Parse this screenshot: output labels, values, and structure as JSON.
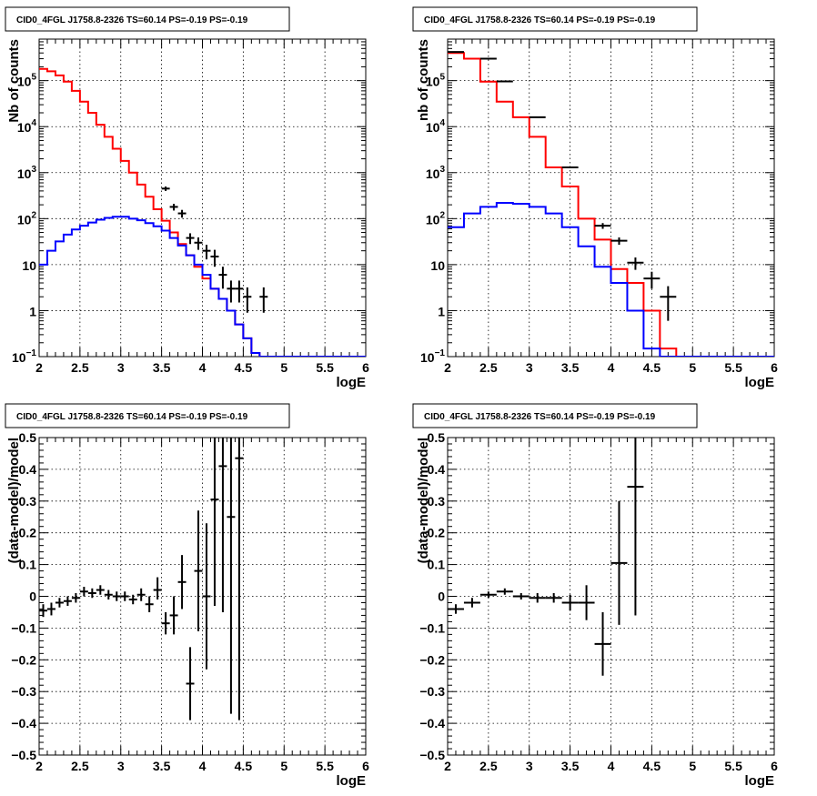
{
  "chart_data": [
    {
      "type": "line",
      "title": "CID0_4FGL J1758.8-2326 TS=60.14 PS=-0.19 PS=-0.19",
      "xlabel": "logE",
      "ylabel": "Nb of counts",
      "xlim": [
        2,
        6
      ],
      "ylim": [
        0.1,
        800000
      ],
      "yscale": "log",
      "grid": true,
      "xticks": [
        "2",
        "2.5",
        "3",
        "3.5",
        "4",
        "4.5",
        "5",
        "5.5",
        "6"
      ],
      "yticks": [
        {
          "v": 0.1,
          "mant": "10",
          "exp": "−1"
        },
        {
          "v": 1,
          "mant": "1",
          "exp": ""
        },
        {
          "v": 10,
          "mant": "10",
          "exp": ""
        },
        {
          "v": 100,
          "mant": "10",
          "exp": "2"
        },
        {
          "v": 1000,
          "mant": "10",
          "exp": "3"
        },
        {
          "v": 10000,
          "mant": "10",
          "exp": "4"
        },
        {
          "v": 100000,
          "mant": "10",
          "exp": "5"
        }
      ],
      "series": [
        {
          "kind": "hist",
          "color": "#ff0000",
          "edges_start": 2,
          "bin_width": 0.1,
          "values": [
            180000,
            160000,
            130000,
            95000,
            60000,
            35000,
            20000,
            11000,
            6000,
            3300,
            1800,
            1000,
            550,
            300,
            160,
            90,
            50,
            28,
            16,
            9,
            5,
            3,
            1.8,
            1,
            0.5,
            0.25,
            0.12,
            0.08,
            0.08,
            0.08,
            0.08,
            0.08,
            0.08,
            0.08,
            0.08,
            0.08,
            0.08,
            0.08,
            0.08,
            0.08
          ]
        },
        {
          "kind": "hist",
          "color": "#0000ff",
          "edges_start": 2,
          "bin_width": 0.1,
          "values": [
            10,
            20,
            32,
            45,
            58,
            70,
            82,
            95,
            104,
            110,
            110,
            100,
            92,
            80,
            68,
            55,
            38,
            26,
            16,
            10,
            6,
            3,
            1.8,
            1,
            0.5,
            0.25,
            0.12,
            0.08,
            0.08,
            0.08,
            0.08,
            0.08,
            0.08,
            0.08,
            0.08,
            0.08,
            0.08,
            0.08,
            0.08,
            0.08
          ]
        },
        {
          "kind": "points",
          "color": "#000000",
          "points": [
            {
              "x": 3.55,
              "y": 450,
              "lo": 400,
              "hi": 500,
              "xw": 0.05
            },
            {
              "x": 3.65,
              "y": 180,
              "lo": 150,
              "hi": 210,
              "xw": 0.05
            },
            {
              "x": 3.75,
              "y": 130,
              "lo": 105,
              "hi": 155,
              "xw": 0.05
            },
            {
              "x": 3.85,
              "y": 38,
              "lo": 28,
              "hi": 48,
              "xw": 0.05
            },
            {
              "x": 3.95,
              "y": 30,
              "lo": 21,
              "hi": 39,
              "xw": 0.05
            },
            {
              "x": 4.05,
              "y": 20,
              "lo": 13,
              "hi": 27,
              "xw": 0.05
            },
            {
              "x": 4.15,
              "y": 15,
              "lo": 9,
              "hi": 21,
              "xw": 0.05
            },
            {
              "x": 4.25,
              "y": 6,
              "lo": 3,
              "hi": 9,
              "xw": 0.05
            },
            {
              "x": 4.35,
              "y": 3,
              "lo": 1.5,
              "hi": 4.5,
              "xw": 0.05
            },
            {
              "x": 4.45,
              "y": 3,
              "lo": 1.5,
              "hi": 4.5,
              "xw": 0.05
            },
            {
              "x": 4.55,
              "y": 2,
              "lo": 0.9,
              "hi": 3.2,
              "xw": 0.05
            },
            {
              "x": 4.75,
              "y": 2,
              "lo": 0.9,
              "hi": 3.2,
              "xw": 0.05
            }
          ]
        }
      ]
    },
    {
      "type": "line",
      "title": "CID0_4FGL J1758.8-2326 TS=60.14 PS=-0.19 PS=-0.19",
      "xlabel": "logE",
      "ylabel": "nb of counts",
      "xlim": [
        2,
        6
      ],
      "ylim": [
        0.1,
        800000
      ],
      "yscale": "log",
      "grid": true,
      "xticks": [
        "2",
        "2.5",
        "3",
        "3.5",
        "4",
        "4.5",
        "5",
        "5.5",
        "6"
      ],
      "yticks": [
        {
          "v": 0.1,
          "mant": "10",
          "exp": "−1"
        },
        {
          "v": 1,
          "mant": "1",
          "exp": ""
        },
        {
          "v": 10,
          "mant": "10",
          "exp": ""
        },
        {
          "v": 100,
          "mant": "10",
          "exp": "2"
        },
        {
          "v": 1000,
          "mant": "10",
          "exp": "3"
        },
        {
          "v": 10000,
          "mant": "10",
          "exp": "4"
        },
        {
          "v": 100000,
          "mant": "10",
          "exp": "5"
        }
      ],
      "series": [
        {
          "kind": "hist",
          "color": "#ff0000",
          "edges_start": 2,
          "bin_width": 0.2,
          "values": [
            400000,
            300000,
            95000,
            35000,
            16000,
            6000,
            1300,
            500,
            100,
            35,
            8,
            4,
            1,
            0.15,
            0.08,
            0.08,
            0.08,
            0.08,
            0.08,
            0.08
          ]
        },
        {
          "kind": "hist",
          "color": "#0000ff",
          "edges_start": 2,
          "bin_width": 0.2,
          "values": [
            65,
            130,
            180,
            220,
            210,
            180,
            130,
            65,
            25,
            9,
            4,
            1,
            0.15,
            0.08,
            0.08,
            0.08,
            0.08,
            0.08,
            0.08,
            0.08
          ]
        },
        {
          "kind": "points",
          "color": "#000000",
          "points": [
            {
              "x": 2.1,
              "y": 420000,
              "lo": 410000,
              "hi": 430000,
              "xw": 0.1
            },
            {
              "x": 2.5,
              "y": 300000,
              "lo": 290000,
              "hi": 310000,
              "xw": 0.1
            },
            {
              "x": 2.7,
              "y": 96000,
              "lo": 92000,
              "hi": 100000,
              "xw": 0.1
            },
            {
              "x": 3.1,
              "y": 16000,
              "lo": 15500,
              "hi": 16500,
              "xw": 0.1
            },
            {
              "x": 3.5,
              "y": 1300,
              "lo": 1250,
              "hi": 1350,
              "xw": 0.1
            },
            {
              "x": 3.9,
              "y": 70,
              "lo": 60,
              "hi": 80,
              "xw": 0.1
            },
            {
              "x": 4.1,
              "y": 33,
              "lo": 27,
              "hi": 39,
              "xw": 0.1
            },
            {
              "x": 4.3,
              "y": 11,
              "lo": 7.7,
              "hi": 14.3,
              "xw": 0.1
            },
            {
              "x": 4.5,
              "y": 5,
              "lo": 3,
              "hi": 7,
              "xw": 0.1
            },
            {
              "x": 4.7,
              "y": 2,
              "lo": 0.6,
              "hi": 3.4,
              "xw": 0.1
            }
          ]
        }
      ]
    },
    {
      "type": "scatter",
      "title": "CID0_4FGL J1758.8-2326 TS=60.14 PS=-0.19 PS=-0.19",
      "xlabel": "logE",
      "ylabel": "(data-model)/model",
      "xlim": [
        2,
        6
      ],
      "ylim": [
        -0.5,
        0.5
      ],
      "yscale": "linear",
      "grid": true,
      "xticks": [
        "2",
        "2.5",
        "3",
        "3.5",
        "4",
        "4.5",
        "5",
        "5.5",
        "6"
      ],
      "yticks": [
        {
          "v": -0.5,
          "label": "−0.5"
        },
        {
          "v": -0.4,
          "label": "−0.4"
        },
        {
          "v": -0.3,
          "label": "−0.3"
        },
        {
          "v": -0.2,
          "label": "−0.2"
        },
        {
          "v": -0.1,
          "label": "−0.1"
        },
        {
          "v": 0,
          "label": "0"
        },
        {
          "v": 0.1,
          "label": "0.1"
        },
        {
          "v": 0.2,
          "label": "0.2"
        },
        {
          "v": 0.3,
          "label": "0.3"
        },
        {
          "v": 0.4,
          "label": "0.4"
        },
        {
          "v": 0.5,
          "label": "0.5"
        }
      ],
      "series": [
        {
          "kind": "points",
          "color": "#000000",
          "points": [
            {
              "x": 2.05,
              "y": -0.045,
              "lo": -0.065,
              "hi": -0.025,
              "xw": 0.05
            },
            {
              "x": 2.15,
              "y": -0.04,
              "lo": -0.06,
              "hi": -0.02,
              "xw": 0.05
            },
            {
              "x": 2.25,
              "y": -0.02,
              "lo": -0.035,
              "hi": -0.005,
              "xw": 0.05
            },
            {
              "x": 2.35,
              "y": -0.015,
              "lo": -0.03,
              "hi": 0.0,
              "xw": 0.05
            },
            {
              "x": 2.45,
              "y": -0.005,
              "lo": -0.02,
              "hi": 0.01,
              "xw": 0.05
            },
            {
              "x": 2.55,
              "y": 0.015,
              "lo": 0.0,
              "hi": 0.03,
              "xw": 0.05
            },
            {
              "x": 2.65,
              "y": 0.01,
              "lo": -0.005,
              "hi": 0.025,
              "xw": 0.05
            },
            {
              "x": 2.75,
              "y": 0.02,
              "lo": 0.005,
              "hi": 0.035,
              "xw": 0.05
            },
            {
              "x": 2.85,
              "y": 0.005,
              "lo": -0.01,
              "hi": 0.02,
              "xw": 0.05
            },
            {
              "x": 2.95,
              "y": 0.0,
              "lo": -0.015,
              "hi": 0.015,
              "xw": 0.05
            },
            {
              "x": 3.05,
              "y": 0.0,
              "lo": -0.015,
              "hi": 0.015,
              "xw": 0.05
            },
            {
              "x": 3.15,
              "y": -0.01,
              "lo": -0.025,
              "hi": 0.005,
              "xw": 0.05
            },
            {
              "x": 3.25,
              "y": 0.005,
              "lo": -0.015,
              "hi": 0.025,
              "xw": 0.05
            },
            {
              "x": 3.35,
              "y": -0.025,
              "lo": -0.05,
              "hi": 0.0,
              "xw": 0.05
            },
            {
              "x": 3.45,
              "y": 0.02,
              "lo": -0.01,
              "hi": 0.06,
              "xw": 0.05
            },
            {
              "x": 3.55,
              "y": -0.085,
              "lo": -0.12,
              "hi": -0.05,
              "xw": 0.05
            },
            {
              "x": 3.65,
              "y": -0.06,
              "lo": -0.12,
              "hi": 0.0,
              "xw": 0.05
            },
            {
              "x": 3.75,
              "y": 0.045,
              "lo": -0.04,
              "hi": 0.13,
              "xw": 0.05
            },
            {
              "x": 3.85,
              "y": -0.275,
              "lo": -0.39,
              "hi": -0.16,
              "xw": 0.05
            },
            {
              "x": 3.95,
              "y": 0.08,
              "lo": -0.11,
              "hi": 0.27,
              "xw": 0.05
            },
            {
              "x": 4.05,
              "y": 0.0,
              "lo": -0.23,
              "hi": 0.23,
              "xw": 0.05
            },
            {
              "x": 4.15,
              "y": 0.305,
              "lo": -0.03,
              "hi": 0.5,
              "xw": 0.05
            },
            {
              "x": 4.25,
              "y": 0.41,
              "lo": -0.05,
              "hi": 0.5,
              "xw": 0.05
            },
            {
              "x": 4.35,
              "y": 0.25,
              "lo": -0.37,
              "hi": 0.5,
              "xw": 0.05
            },
            {
              "x": 4.45,
              "y": 0.435,
              "lo": -0.39,
              "hi": 0.5,
              "xw": 0.05
            }
          ]
        }
      ]
    },
    {
      "type": "scatter",
      "title": "CID0_4FGL J1758.8-2326 TS=60.14 PS=-0.19 PS=-0.19",
      "xlabel": "logE",
      "ylabel": "(data-model)/model",
      "xlim": [
        2,
        6
      ],
      "ylim": [
        -0.5,
        0.5
      ],
      "yscale": "linear",
      "grid": true,
      "xticks": [
        "2",
        "2.5",
        "3",
        "3.5",
        "4",
        "4.5",
        "5",
        "5.5",
        "6"
      ],
      "yticks": [
        {
          "v": -0.5,
          "label": "−0.5"
        },
        {
          "v": -0.4,
          "label": "−0.4"
        },
        {
          "v": -0.3,
          "label": "−0.3"
        },
        {
          "v": -0.2,
          "label": "−0.2"
        },
        {
          "v": -0.1,
          "label": "−0.1"
        },
        {
          "v": 0,
          "label": "0"
        },
        {
          "v": 0.1,
          "label": "0.1"
        },
        {
          "v": 0.2,
          "label": "0.2"
        },
        {
          "v": 0.3,
          "label": "0.3"
        },
        {
          "v": 0.4,
          "label": "0.4"
        },
        {
          "v": 0.5,
          "label": "0.5"
        }
      ],
      "series": [
        {
          "kind": "points",
          "color": "#000000",
          "points": [
            {
              "x": 2.1,
              "y": -0.04,
              "lo": -0.055,
              "hi": -0.025,
              "xw": 0.1
            },
            {
              "x": 2.3,
              "y": -0.02,
              "lo": -0.035,
              "hi": -0.005,
              "xw": 0.1
            },
            {
              "x": 2.5,
              "y": 0.005,
              "lo": -0.005,
              "hi": 0.015,
              "xw": 0.1
            },
            {
              "x": 2.7,
              "y": 0.015,
              "lo": 0.005,
              "hi": 0.025,
              "xw": 0.1
            },
            {
              "x": 2.9,
              "y": 0.0,
              "lo": -0.01,
              "hi": 0.01,
              "xw": 0.1
            },
            {
              "x": 3.1,
              "y": -0.005,
              "lo": -0.02,
              "hi": 0.01,
              "xw": 0.1
            },
            {
              "x": 3.3,
              "y": -0.005,
              "lo": -0.02,
              "hi": 0.01,
              "xw": 0.1
            },
            {
              "x": 3.5,
              "y": -0.02,
              "lo": -0.045,
              "hi": 0.005,
              "xw": 0.1
            },
            {
              "x": 3.7,
              "y": -0.02,
              "lo": -0.075,
              "hi": 0.035,
              "xw": 0.1
            },
            {
              "x": 3.9,
              "y": -0.15,
              "lo": -0.25,
              "hi": -0.05,
              "xw": 0.1
            },
            {
              "x": 4.1,
              "y": 0.105,
              "lo": -0.09,
              "hi": 0.3,
              "xw": 0.1
            },
            {
              "x": 4.3,
              "y": 0.345,
              "lo": -0.06,
              "hi": 0.5,
              "xw": 0.1
            }
          ]
        }
      ]
    }
  ]
}
